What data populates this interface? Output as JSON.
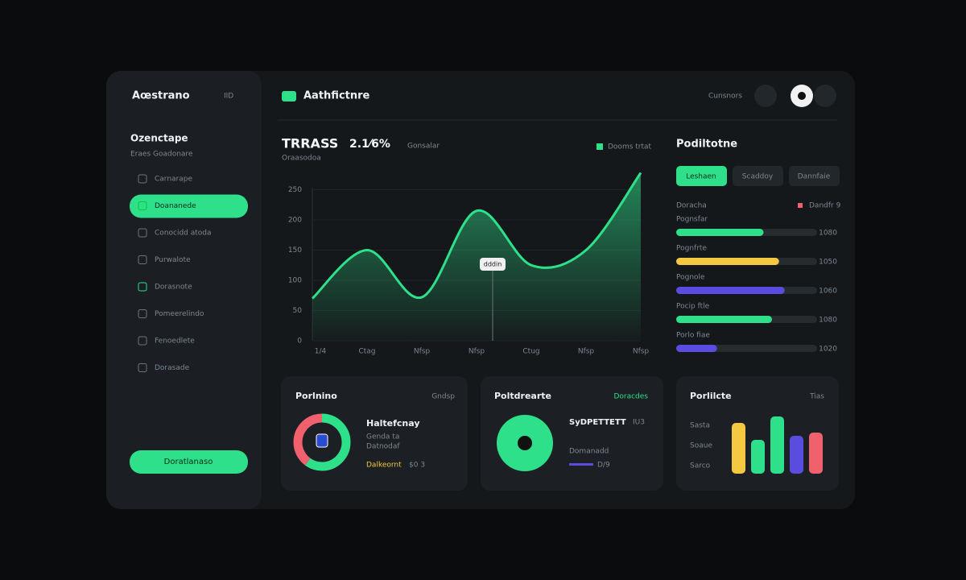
{
  "sidebar": {
    "brand": "Aœstrano",
    "brand_tag": "IID",
    "section": "Ozenctape",
    "section_sub": "Eraes Goadonare",
    "nav": [
      "Carnarape",
      "Doananede",
      "Conocidd atoda",
      "Purwalote",
      "Dorasnote",
      "Pomeerelindo",
      "Fenoedlete",
      "Dorasade"
    ],
    "button": "Doratlanaso"
  },
  "header": {
    "title": "Aathfictnre",
    "search": "Cunsnors"
  },
  "chart_data": {
    "type": "line",
    "title": "TRRASS",
    "change": "2.1⁄6%",
    "dropdown": "Gonsalar",
    "subtitle": "Oraasodoa",
    "annotation": "dddin",
    "categories": [
      "1/4",
      "Ctag",
      "Nfsp",
      "Nfsp",
      "Ctug",
      "Nfsp",
      "Nfsp"
    ],
    "series": [
      {
        "name": "Dooms trtat",
        "color": "#2ee08a",
        "values": [
          70,
          150,
          72,
          215,
          125,
          150,
          278
        ]
      }
    ],
    "ylim": [
      0,
      280
    ],
    "yticks": [
      0,
      50,
      100,
      150,
      200,
      250
    ]
  },
  "panel": {
    "title": "Podiltotne",
    "tabs": [
      "Leshaen",
      "Scaddoy",
      "Dannfaie"
    ],
    "legend_left": "Doracha",
    "legend_right": "Dandfr 9",
    "items": [
      {
        "label": "Pognsfar",
        "value": 62,
        "color": "#2ee08a",
        "amount": "1080"
      },
      {
        "label": "Pognfrte",
        "value": 73,
        "color": "#f5c842",
        "amount": "1050"
      },
      {
        "label": "Pognole",
        "value": 77,
        "color": "#5b4ce0",
        "amount": "1060"
      },
      {
        "label": "Pocip ftle",
        "value": 68,
        "color": "#2ee08a",
        "amount": "1080"
      },
      {
        "label": "Porlo fiae",
        "value": 29,
        "color": "#5b4ce0",
        "amount": "1020"
      }
    ]
  },
  "cards": [
    {
      "title": "Porlnino",
      "action": "Gndsp",
      "head": "Haltefcnay",
      "lines": [
        "Genda ta",
        "Datnodaf"
      ],
      "foot": "Dalkeornt",
      "foot_value": "$0 3",
      "donut": [
        {
          "value": 60,
          "color": "#2ee08a"
        },
        {
          "value": 40,
          "color": "#f0616d"
        }
      ]
    },
    {
      "title": "Poltdrearte",
      "action": "Doracdes",
      "head": "SyDPETTETT",
      "head_tag": "IU3",
      "lines": [
        "Domanadd"
      ],
      "foot_value": "D/9"
    },
    {
      "title": "Porlilcte",
      "action": "Tias",
      "labels": [
        "Sasta",
        "Soaue",
        "Sarco"
      ],
      "bars": [
        {
          "value": 63,
          "color": "#f5c842"
        },
        {
          "value": 42,
          "color": "#2ee08a"
        },
        {
          "value": 71,
          "color": "#2ee08a"
        },
        {
          "value": 47,
          "color": "#5b4ce0"
        },
        {
          "value": 51,
          "color": "#f0616d"
        }
      ]
    }
  ]
}
